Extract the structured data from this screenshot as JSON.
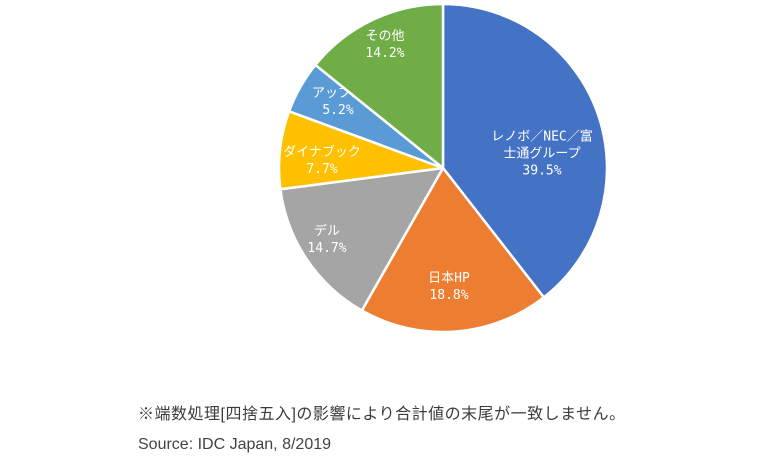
{
  "chart_data": {
    "type": "pie",
    "title": "",
    "total_label": "",
    "label_color": "#ffffff",
    "slice_border_color": "#ffffff",
    "series": [
      {
        "id": "lenovo-nec-fujitsu-group",
        "name": "レノボ／NEC／富士通グループ",
        "value": 39.5,
        "percent_label": "39.5%",
        "color": "#4472C4",
        "label_lines": [
          "レノボ／NEC／富",
          "士通グループ",
          "39.5%"
        ]
      },
      {
        "id": "japan-hp",
        "name": "日本HP",
        "value": 18.8,
        "percent_label": "18.8%",
        "color": "#ED7D31",
        "label_lines": [
          "日本HP",
          "18.8%"
        ]
      },
      {
        "id": "dell",
        "name": "デル",
        "value": 14.7,
        "percent_label": "14.7%",
        "color": "#A5A5A5",
        "label_lines": [
          "デル",
          "14.7%"
        ]
      },
      {
        "id": "dynabook",
        "name": "ダイナブック",
        "value": 7.7,
        "percent_label": "7.7%",
        "color": "#FFC000",
        "label_lines": [
          "ダイナブック",
          "7.7%"
        ]
      },
      {
        "id": "apple",
        "name": "アップル",
        "value": 5.2,
        "percent_label": "5.2%",
        "color": "#5B9BD5",
        "label_lines": [
          "アップル",
          "5.2%"
        ]
      },
      {
        "id": "others",
        "name": "その他",
        "value": 14.2,
        "percent_label": "14.2%",
        "color": "#70AD47",
        "label_lines": [
          "その他",
          "14.2%"
        ]
      }
    ]
  },
  "footer": {
    "note": "※端数処理[四捨五入]の影響により合計値の末尾が一致しません。",
    "source": "Source: IDC Japan, 8/2019"
  }
}
